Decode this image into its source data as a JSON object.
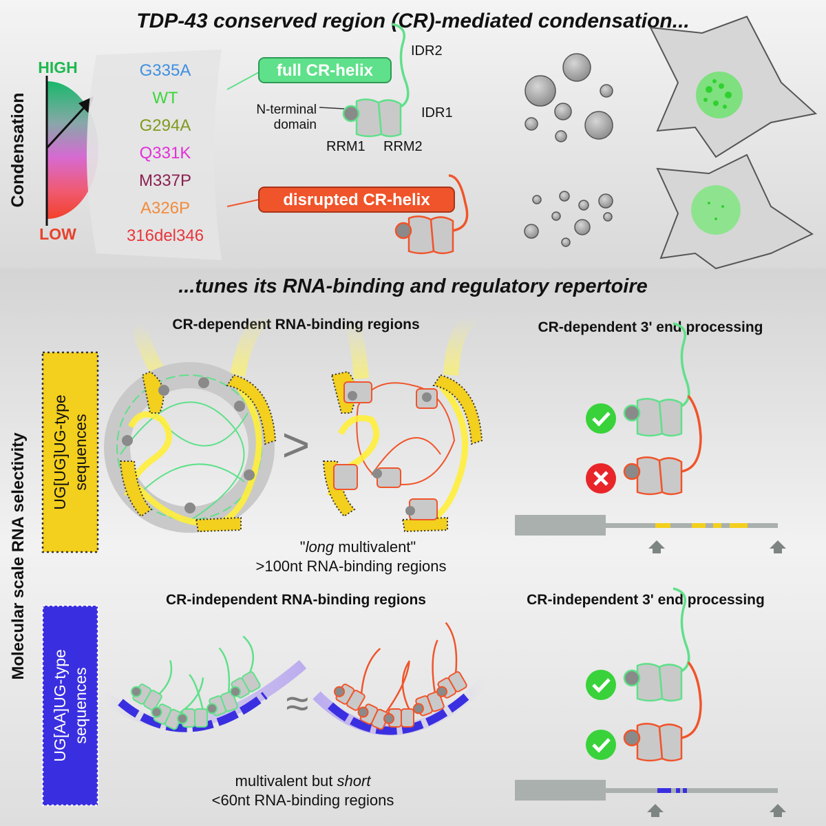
{
  "top_title": "TDP-43 conserved region (CR)-mediated condensation...",
  "mid_title": "...tunes its RNA-binding and regulatory repertoire",
  "condensation_axis": {
    "label": "Condensation",
    "high": "HIGH",
    "low": "LOW"
  },
  "variants": [
    {
      "name": "G335A",
      "color": "#3f8fe0"
    },
    {
      "name": "WT",
      "color": "#3ad63a"
    },
    {
      "name": "G294A",
      "color": "#7f9a1e"
    },
    {
      "name": "Q331K",
      "color": "#e22fd8"
    },
    {
      "name": "M337P",
      "color": "#8a2050"
    },
    {
      "name": "A326P",
      "color": "#f28b3a"
    },
    {
      "name": "316del346",
      "color": "#e8363a"
    }
  ],
  "protein": {
    "full_label": "full CR-helix",
    "disrupted_label": "disrupted CR-helix",
    "idr2": "IDR2",
    "idr1": "IDR1",
    "nterm_1": "N-terminal",
    "nterm_2": "domain",
    "rrm1": "RRM1",
    "rrm2": "RRM2"
  },
  "rna_axis_label": "Molecular scale RNA selectivity",
  "ug_box": {
    "line1": "UG[UG]UG-type",
    "line2": "sequences"
  },
  "aa_box": {
    "line1": "UG[AA]UG-type",
    "line2": "sequences"
  },
  "dep_binding_title": "CR-dependent RNA-binding regions",
  "dep_processing_title": "CR-dependent 3' end processing",
  "indep_binding_title": "CR-independent RNA-binding regions",
  "indep_processing_title": "CR-independent 3' end processing",
  "gt_symbol": ">",
  "approx_symbol": "≈",
  "long_caption": {
    "q_open": "\"",
    "italic": "long",
    "rest": " multivalent\"",
    "line2": ">100nt RNA-binding regions"
  },
  "short_caption": {
    "lead": "multivalent but ",
    "italic": "short",
    "line2": "<60nt RNA-binding regions"
  },
  "colors": {
    "green": "#5fe08a",
    "orange": "#f0542a",
    "yellow": "#f3cf1e",
    "blue": "#3a2fe0",
    "grey": "#c9c9c9"
  }
}
